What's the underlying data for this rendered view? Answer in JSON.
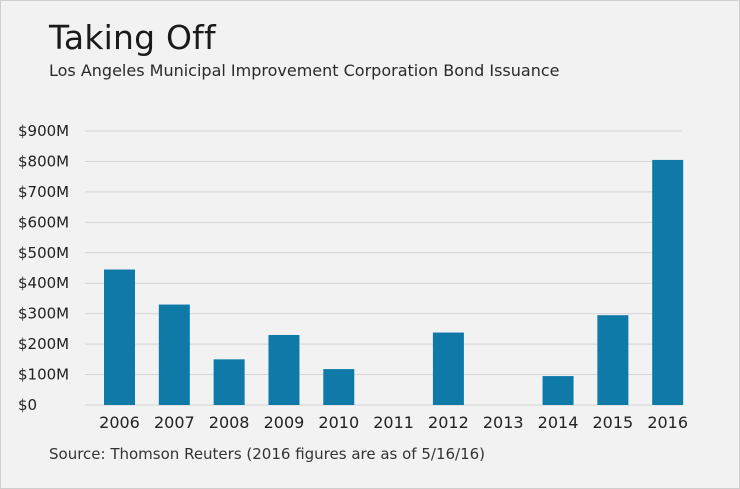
{
  "chart_data": {
    "type": "bar",
    "title": "Taking Off",
    "subtitle": "Los Angeles Municipal Improvement Corporation Bond Issuance",
    "source": "Source: Thomson Reuters (2016 figures are as of 5/16/16)",
    "categories": [
      "2006",
      "2007",
      "2008",
      "2009",
      "2010",
      "2011",
      "2012",
      "2013",
      "2014",
      "2015",
      "2016"
    ],
    "values": [
      445,
      330,
      150,
      230,
      118,
      0,
      238,
      0,
      95,
      295,
      805
    ],
    "value_unit": "$M",
    "yticks": [
      0,
      100,
      200,
      300,
      400,
      500,
      600,
      700,
      800,
      900
    ],
    "ytick_labels": [
      "$0",
      "$100M",
      "$200M",
      "$300M",
      "$400M",
      "$500M",
      "$600M",
      "$700M",
      "$800M",
      "$900M"
    ],
    "ylim": [
      0,
      900
    ],
    "xlabel": "",
    "ylabel": "",
    "grid": true,
    "legend": "none",
    "bar_color": "#0f7aa8",
    "grid_color": "#d4d4d4"
  }
}
